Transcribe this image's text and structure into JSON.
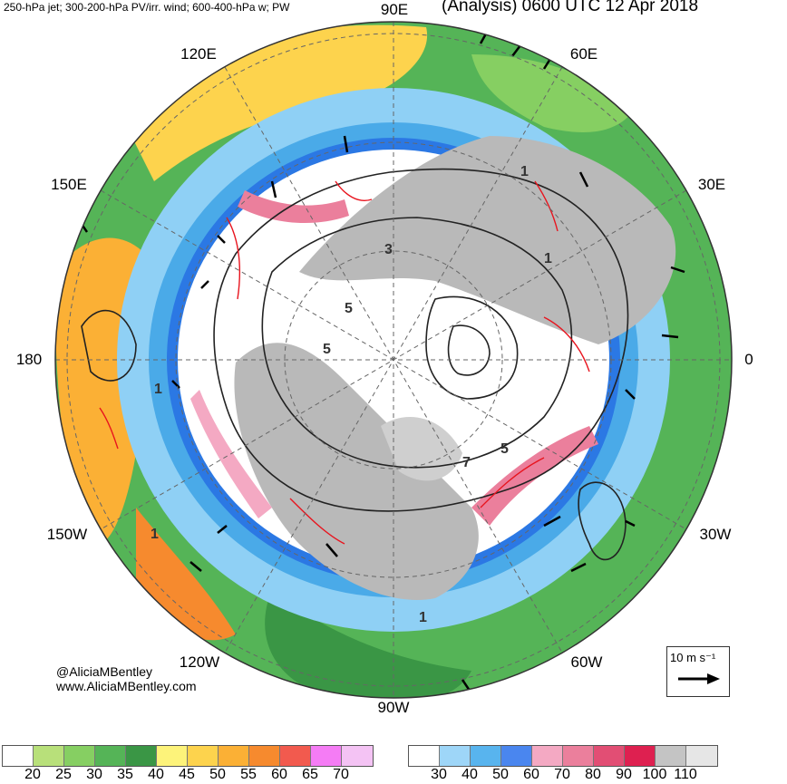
{
  "header": {
    "left_title": "250-hPa jet; 300-200-hPa PV/irr. wind; 600-400-hPa w; PW",
    "right_title": "(Analysis) 0600 UTC 12 Apr 2018"
  },
  "map": {
    "projection": "north-polar-stereographic",
    "longitude_labels": [
      "90E",
      "60E",
      "30E",
      "0",
      "30W",
      "60W",
      "90W",
      "120W",
      "150W",
      "180",
      "150E",
      "120E"
    ],
    "contour_labels": [
      "1",
      "3",
      "5",
      "5",
      "7",
      "1",
      "1",
      "1",
      "5",
      "1"
    ],
    "colors": {
      "land_gray": "#b9b9b9",
      "jet_light_blue": "#8fd0f5",
      "jet_blue": "#4aaae8",
      "jet_dark_blue": "#2b78e4",
      "pv_contour": "#222222",
      "vertical_motion": "#e8141e",
      "wind_vector": "#000000"
    }
  },
  "credits": {
    "handle": "@AliciaMBentley",
    "website": "www.AliciaMBentley.com"
  },
  "scale_vector": {
    "label": "10 m s⁻¹"
  },
  "pw_colorbar": {
    "colors": [
      "#ffffff",
      "#b8e07a",
      "#86cf62",
      "#55b457",
      "#3a9645",
      "#fdf37a",
      "#fdd34d",
      "#fbb035",
      "#f68a2e",
      "#f25a4e",
      "#f57cf5",
      "#f4c3f4"
    ],
    "ticks": [
      "20",
      "25",
      "30",
      "35",
      "40",
      "45",
      "50",
      "55",
      "60",
      "65",
      "70"
    ]
  },
  "jet_colorbar": {
    "colors": [
      "#ffffff",
      "#9ed6f8",
      "#58b4ee",
      "#4a86ef",
      "#f4a9c3",
      "#eb7f9c",
      "#e24e74",
      "#de2050",
      "#c4c4c4",
      "#e6e6e6"
    ],
    "ticks": [
      "30",
      "40",
      "50",
      "60",
      "70",
      "80",
      "90",
      "100",
      "110"
    ]
  }
}
